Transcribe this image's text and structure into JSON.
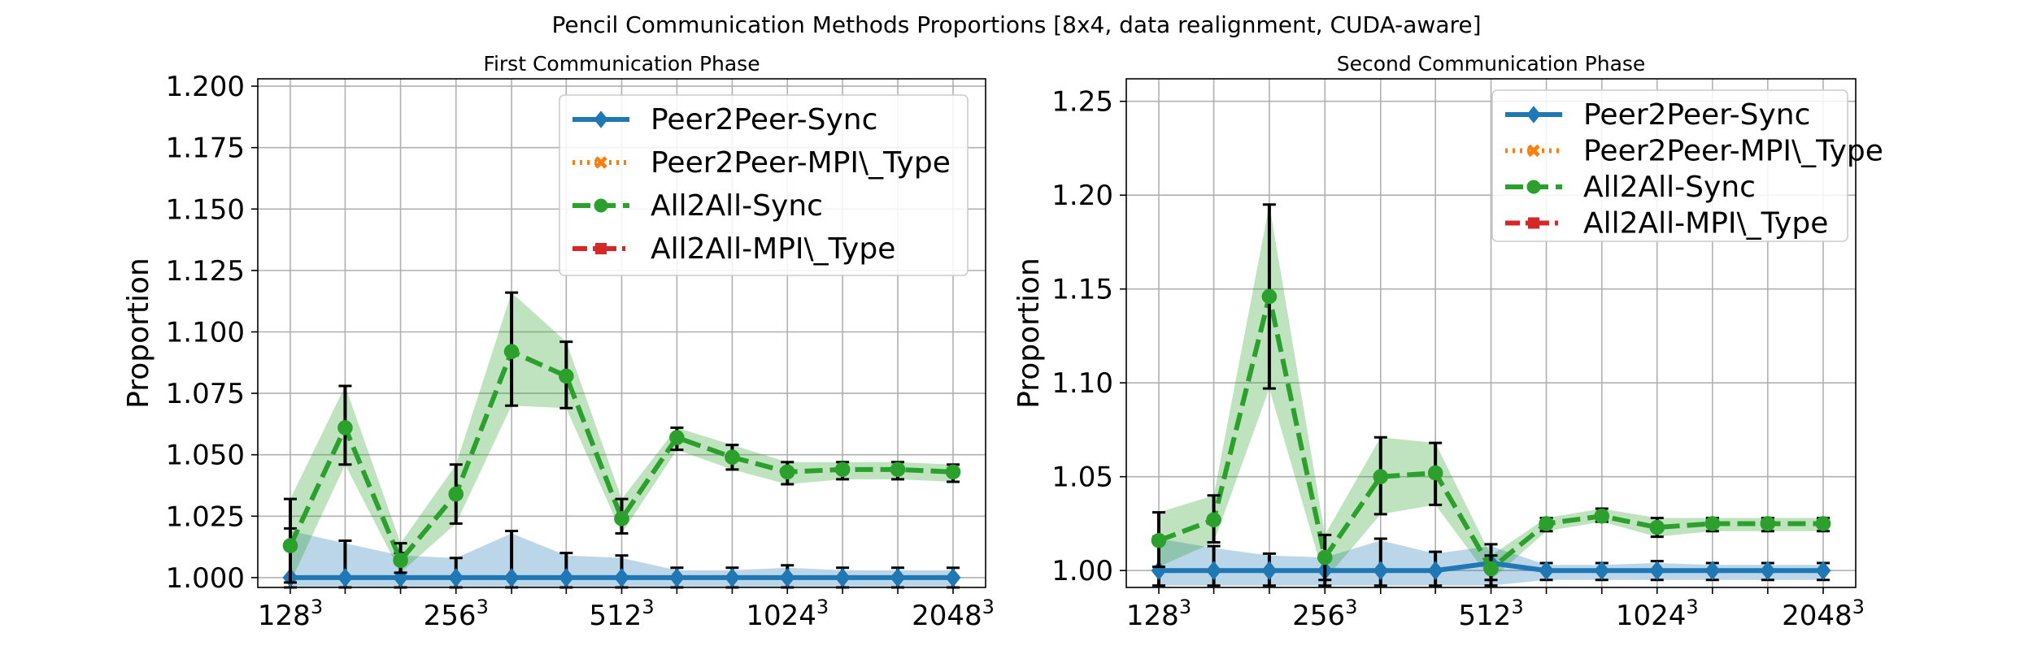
{
  "chart_data": {
    "title": "Pencil Communication Methods Proportions [8x4, data realignment, CUDA-aware]",
    "panels": [
      {
        "type": "line",
        "title": "First Communication Phase",
        "ylabel": "Proportion",
        "ylim": [
          0.996,
          1.203
        ],
        "yticks": [
          1.0,
          1.025,
          1.05,
          1.075,
          1.1,
          1.125,
          1.15,
          1.175,
          1.2
        ],
        "ytick_labels": [
          "1.000",
          "1.025",
          "1.050",
          "1.075",
          "1.100",
          "1.125",
          "1.150",
          "1.175",
          "1.200"
        ],
        "x": [
          128,
          161,
          203,
          256,
          323,
          406,
          512,
          645,
          813,
          1024,
          1290,
          1625,
          2048
        ],
        "xticks": [
          128,
          256,
          512,
          1024,
          2048
        ],
        "xtick_labels": [
          "128",
          "256",
          "512",
          "1024",
          "2048"
        ],
        "xtick_exponent": "3",
        "legend_position": "upper right",
        "grid": true,
        "series": [
          {
            "name": "Peer2Peer-Sync",
            "color": "#1f77b4",
            "linestyle": "solid",
            "marker": "diamond",
            "values": [
              1.0,
              1.0,
              1.0,
              1.0,
              1.0,
              1.0,
              1.0,
              1.0,
              1.0,
              1.0,
              1.0,
              1.0,
              1.0
            ],
            "err_low": [
              0.996,
              0.996,
              0.996,
              0.996,
              0.996,
              0.996,
              0.996,
              0.996,
              0.996,
              0.996,
              0.996,
              0.996,
              0.996
            ],
            "err_high": [
              1.02,
              1.015,
              1.01,
              1.008,
              1.019,
              1.01,
              1.009,
              1.004,
              1.004,
              1.005,
              1.004,
              1.004,
              1.004
            ],
            "band_low": [
              0.996,
              0.996,
              0.996,
              0.996,
              0.996,
              0.996,
              0.996,
              0.996,
              0.996,
              0.996,
              0.996,
              0.996,
              0.996
            ],
            "band_high": [
              1.019,
              1.014,
              1.009,
              1.008,
              1.018,
              1.009,
              1.008,
              1.003,
              1.003,
              1.004,
              1.003,
              1.003,
              1.003
            ]
          },
          {
            "name": "Peer2Peer-MPI\\_Type",
            "color": "#ff7f0e",
            "linestyle": "dotted",
            "marker": "x",
            "values": []
          },
          {
            "name": "All2All-Sync",
            "color": "#2ca02c",
            "linestyle": "dashed",
            "marker": "circle",
            "values": [
              1.013,
              1.061,
              1.007,
              1.034,
              1.092,
              1.082,
              1.024,
              1.057,
              1.049,
              1.043,
              1.044,
              1.044,
              1.043
            ],
            "err_low": [
              0.998,
              1.046,
              1.002,
              1.022,
              1.07,
              1.069,
              1.018,
              1.052,
              1.044,
              1.038,
              1.04,
              1.04,
              1.039
            ],
            "err_high": [
              1.032,
              1.078,
              1.014,
              1.046,
              1.116,
              1.096,
              1.032,
              1.061,
              1.054,
              1.047,
              1.047,
              1.047,
              1.046
            ],
            "band_low": [
              0.998,
              1.046,
              1.002,
              1.022,
              1.07,
              1.069,
              1.018,
              1.052,
              1.044,
              1.038,
              1.04,
              1.04,
              1.039
            ],
            "band_high": [
              1.032,
              1.078,
              1.014,
              1.046,
              1.116,
              1.096,
              1.032,
              1.061,
              1.054,
              1.047,
              1.047,
              1.047,
              1.046
            ]
          },
          {
            "name": "All2All-MPI\\_Type",
            "color": "#d62728",
            "linestyle": "dashdot",
            "marker": "square",
            "values": []
          }
        ]
      },
      {
        "type": "line",
        "title": "Second Communication Phase",
        "ylabel": "Proportion",
        "ylim": [
          0.991,
          1.262
        ],
        "yticks": [
          1.0,
          1.05,
          1.1,
          1.15,
          1.2,
          1.25
        ],
        "ytick_labels": [
          "1.00",
          "1.05",
          "1.10",
          "1.15",
          "1.20",
          "1.25"
        ],
        "x": [
          128,
          161,
          203,
          256,
          323,
          406,
          512,
          645,
          813,
          1024,
          1290,
          1625,
          2048
        ],
        "xticks": [
          128,
          256,
          512,
          1024,
          2048
        ],
        "xtick_labels": [
          "128",
          "256",
          "512",
          "1024",
          "2048"
        ],
        "xtick_exponent": "3",
        "legend_position": "upper right",
        "grid": true,
        "series": [
          {
            "name": "Peer2Peer-Sync",
            "color": "#1f77b4",
            "linestyle": "solid",
            "marker": "diamond",
            "values": [
              1.0,
              1.0,
              1.0,
              1.0,
              1.0,
              1.0,
              1.004,
              1.0,
              1.0,
              1.0,
              1.0,
              1.0,
              1.0
            ],
            "err_low": [
              0.992,
              0.992,
              0.992,
              0.992,
              0.992,
              0.992,
              0.992,
              0.995,
              0.995,
              0.995,
              0.995,
              0.995,
              0.995
            ],
            "err_high": [
              1.018,
              1.013,
              1.009,
              1.008,
              1.017,
              1.01,
              1.014,
              1.004,
              1.004,
              1.005,
              1.004,
              1.004,
              1.004
            ],
            "band_low": [
              0.992,
              0.992,
              0.992,
              0.992,
              0.992,
              0.992,
              0.992,
              0.995,
              0.995,
              0.995,
              0.995,
              0.995,
              0.995
            ],
            "band_high": [
              1.017,
              1.012,
              1.008,
              1.007,
              1.016,
              1.009,
              1.013,
              1.003,
              1.003,
              1.004,
              1.003,
              1.003,
              1.003
            ]
          },
          {
            "name": "Peer2Peer-MPI\\_Type",
            "color": "#ff7f0e",
            "linestyle": "dotted",
            "marker": "x",
            "values": []
          },
          {
            "name": "All2All-Sync",
            "color": "#2ca02c",
            "linestyle": "dashed",
            "marker": "circle",
            "values": [
              1.016,
              1.027,
              1.146,
              1.007,
              1.05,
              1.052,
              1.001,
              1.025,
              1.029,
              1.023,
              1.025,
              1.025,
              1.025
            ],
            "err_low": [
              1.002,
              1.015,
              1.097,
              0.995,
              1.03,
              1.035,
              0.995,
              1.021,
              1.026,
              1.018,
              1.021,
              1.021,
              1.021
            ],
            "err_high": [
              1.031,
              1.04,
              1.195,
              1.019,
              1.071,
              1.068,
              1.008,
              1.028,
              1.033,
              1.028,
              1.028,
              1.028,
              1.028
            ],
            "band_low": [
              1.002,
              1.015,
              1.097,
              0.995,
              1.03,
              1.035,
              0.995,
              1.021,
              1.026,
              1.018,
              1.021,
              1.021,
              1.021
            ],
            "band_high": [
              1.031,
              1.04,
              1.195,
              1.019,
              1.071,
              1.068,
              1.008,
              1.028,
              1.033,
              1.028,
              1.028,
              1.028,
              1.028
            ]
          },
          {
            "name": "All2All-MPI\\_Type",
            "color": "#d62728",
            "linestyle": "dashdot",
            "marker": "square",
            "values": []
          }
        ]
      }
    ]
  }
}
